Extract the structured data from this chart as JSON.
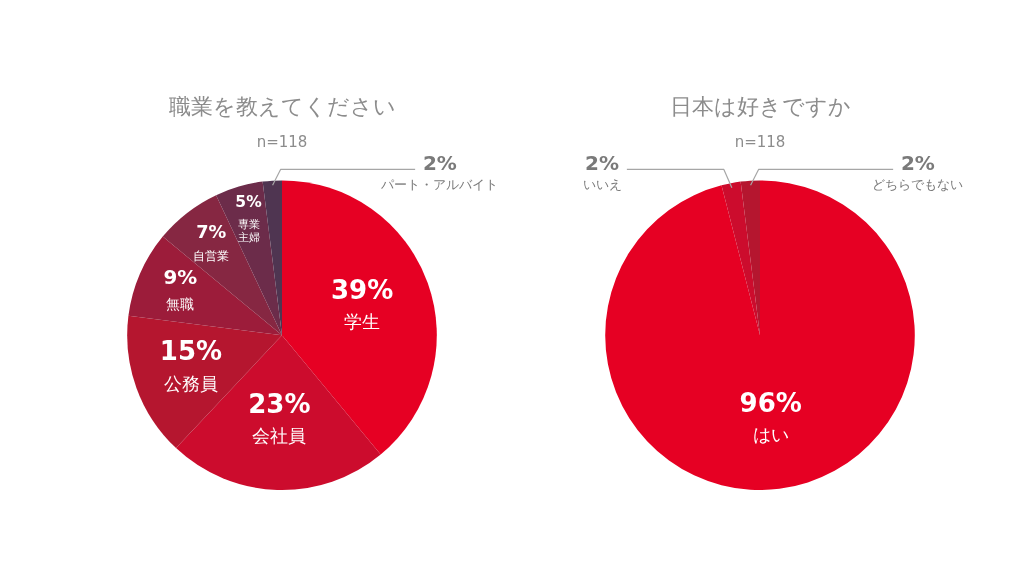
{
  "chart_data": [
    {
      "type": "pie",
      "title": "職業を教えてください",
      "subtitle": "n=118",
      "categories": [
        "学生",
        "会社員",
        "公務員",
        "無職",
        "自営業",
        "専業主婦",
        "パート・アルバイト"
      ],
      "values": [
        39,
        23,
        15,
        9,
        7,
        5,
        2
      ],
      "value_labels": [
        "39%",
        "23%",
        "15%",
        "9%",
        "7%",
        "5%",
        "2%"
      ],
      "colors": [
        "#e60023",
        "#cc0c2d",
        "#b5162f",
        "#9c1c3a",
        "#862742",
        "#6c2c4a",
        "#4f3551"
      ]
    },
    {
      "type": "pie",
      "title": "日本は好きですか",
      "subtitle": "n=118",
      "categories": [
        "はい",
        "いいえ",
        "どちらでもない"
      ],
      "values": [
        96,
        2,
        2
      ],
      "value_labels": [
        "96%",
        "2%",
        "2%"
      ],
      "colors": [
        "#e60023",
        "#cc0c2d",
        "#b5162f"
      ]
    }
  ]
}
